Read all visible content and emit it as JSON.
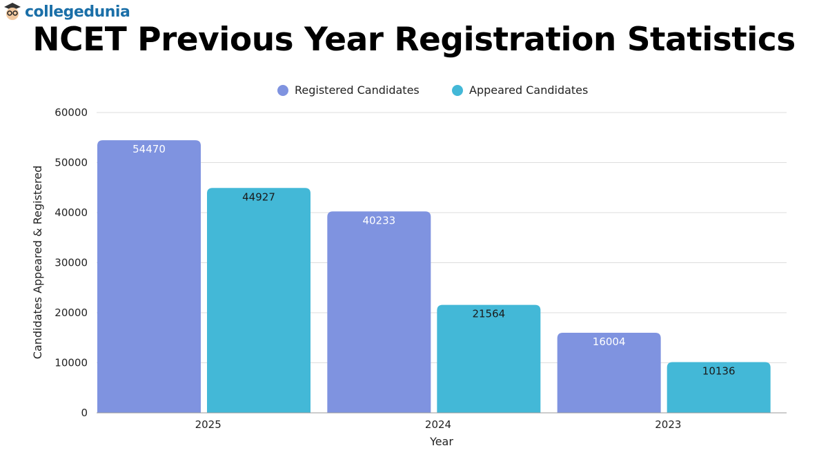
{
  "brand": {
    "name": "collegedunia"
  },
  "chart_data": {
    "type": "bar",
    "title": "NCET Previous Year Registration Statistics",
    "xlabel": "Year",
    "ylabel": "Candidates Appeared & Registered",
    "categories": [
      "2025",
      "2024",
      "2023"
    ],
    "series": [
      {
        "name": "Registered Candidates",
        "color": "#7f93e0",
        "label_color": "#ffffff",
        "values": [
          54470,
          40233,
          16004
        ]
      },
      {
        "name": "Appeared Candidates",
        "color": "#43b8d7",
        "label_color": "#1a1a1a",
        "values": [
          44927,
          21564,
          10136
        ]
      }
    ],
    "ylim": [
      0,
      60000
    ],
    "yticks": [
      "0",
      "10000",
      "20000",
      "30000",
      "40000",
      "50000",
      "60000"
    ],
    "grid": true,
    "legend": "top"
  }
}
